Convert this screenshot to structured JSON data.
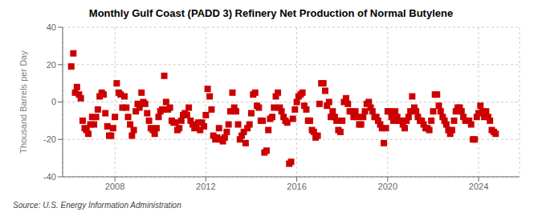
{
  "chart_data": {
    "type": "scatter",
    "title": "Monthly Gulf Coast (PADD 3) Refinery Net Production of Normal Butylene",
    "ylabel": "Thousand Barrels per Day",
    "annotations": [
      "Source: U.S. Energy Information Administration"
    ],
    "color": "#cc0000",
    "marker": "square",
    "grid": true,
    "xlim": [
      2005.7,
      2025.8
    ],
    "xticks": [
      2008,
      2012,
      2016,
      2020,
      2024
    ],
    "ylim": [
      -40,
      40
    ],
    "yticks": [
      -40,
      -20,
      0,
      20,
      40
    ],
    "x": [
      2006.08,
      2006.17,
      2006.25,
      2006.33,
      2006.42,
      2006.5,
      2006.58,
      2006.67,
      2006.75,
      2006.83,
      2006.92,
      2007.0,
      2007.08,
      2007.17,
      2007.25,
      2007.33,
      2007.42,
      2007.5,
      2007.58,
      2007.67,
      2007.75,
      2007.83,
      2007.92,
      2008.0,
      2008.08,
      2008.17,
      2008.25,
      2008.33,
      2008.42,
      2008.5,
      2008.58,
      2008.67,
      2008.75,
      2008.83,
      2008.92,
      2009.0,
      2009.08,
      2009.17,
      2009.25,
      2009.33,
      2009.42,
      2009.5,
      2009.58,
      2009.67,
      2009.75,
      2009.83,
      2009.92,
      2010.0,
      2010.08,
      2010.17,
      2010.25,
      2010.33,
      2010.42,
      2010.5,
      2010.58,
      2010.67,
      2010.75,
      2010.83,
      2010.92,
      2011.0,
      2011.08,
      2011.17,
      2011.25,
      2011.33,
      2011.42,
      2011.5,
      2011.58,
      2011.67,
      2011.75,
      2011.83,
      2011.92,
      2012.0,
      2012.08,
      2012.17,
      2012.25,
      2012.33,
      2012.42,
      2012.5,
      2012.58,
      2012.67,
      2012.75,
      2012.83,
      2012.92,
      2013.0,
      2013.08,
      2013.17,
      2013.25,
      2013.33,
      2013.42,
      2013.5,
      2013.58,
      2013.67,
      2013.75,
      2013.83,
      2013.92,
      2014.0,
      2014.08,
      2014.17,
      2014.25,
      2014.33,
      2014.42,
      2014.5,
      2014.58,
      2014.67,
      2014.75,
      2014.83,
      2014.92,
      2015.0,
      2015.08,
      2015.17,
      2015.25,
      2015.33,
      2015.42,
      2015.5,
      2015.58,
      2015.67,
      2015.75,
      2015.83,
      2015.92,
      2016.0,
      2016.08,
      2016.17,
      2016.25,
      2016.33,
      2016.42,
      2016.5,
      2016.58,
      2016.67,
      2016.75,
      2016.83,
      2016.92,
      2017.0,
      2017.08,
      2017.17,
      2017.25,
      2017.33,
      2017.42,
      2017.5,
      2017.58,
      2017.67,
      2017.75,
      2017.83,
      2017.92,
      2018.0,
      2018.08,
      2018.17,
      2018.25,
      2018.33,
      2018.42,
      2018.5,
      2018.58,
      2018.67,
      2018.75,
      2018.83,
      2018.92,
      2019.0,
      2019.08,
      2019.17,
      2019.25,
      2019.33,
      2019.42,
      2019.5,
      2019.58,
      2019.67,
      2019.75,
      2019.83,
      2019.92,
      2020.0,
      2020.08,
      2020.17,
      2020.25,
      2020.33,
      2020.42,
      2020.5,
      2020.58,
      2020.67,
      2020.75,
      2020.83,
      2020.92,
      2021.0,
      2021.08,
      2021.17,
      2021.25,
      2021.33,
      2021.42,
      2021.5,
      2021.58,
      2021.67,
      2021.75,
      2021.83,
      2021.92,
      2022.0,
      2022.08,
      2022.17,
      2022.25,
      2022.33,
      2022.42,
      2022.5,
      2022.58,
      2022.67,
      2022.75,
      2022.83,
      2022.92,
      2023.0,
      2023.08,
      2023.17,
      2023.25,
      2023.33,
      2023.42,
      2023.58,
      2023.67,
      2023.75,
      2023.83,
      2023.92,
      2024.0,
      2024.08,
      2024.17,
      2024.25,
      2024.33,
      2024.42,
      2024.5,
      2024.58,
      2024.67,
      2024.75
    ],
    "values": [
      19.0,
      26.0,
      5.0,
      8.0,
      4.0,
      2.0,
      -10.0,
      -14.0,
      -15.0,
      -17.0,
      -12.0,
      -8.0,
      -12.0,
      -8.0,
      -4.0,
      3.0,
      5.0,
      4.0,
      -6.0,
      -13.0,
      -18.0,
      -18.0,
      -14.0,
      -8.0,
      10.0,
      5.0,
      4.0,
      -3.0,
      3.0,
      -3.0,
      -8.0,
      -12.0,
      -18.0,
      -15.0,
      -5.0,
      -1.0,
      -3.0,
      5.0,
      0.0,
      -1.0,
      -6.0,
      -10.0,
      -14.0,
      -15.0,
      -17.0,
      -14.0,
      -8.0,
      -5.0,
      -4.0,
      14.0,
      0.0,
      -4.0,
      -3.0,
      -10.0,
      -11.0,
      -11.0,
      -15.0,
      -14.0,
      -10.0,
      -7.0,
      -6.0,
      -7.0,
      -3.0,
      -10.0,
      -12.0,
      -14.0,
      -13.0,
      -11.0,
      -15.0,
      -11.0,
      -13.0,
      -7.0,
      7.0,
      3.0,
      -4.0,
      -18.0,
      -20.0,
      -19.0,
      -14.0,
      -20.0,
      -21.0,
      -19.0,
      -16.0,
      -12.0,
      -5.0,
      5.0,
      -3.0,
      -5.0,
      -12.0,
      -20.0,
      -18.0,
      -16.0,
      -22.0,
      -14.0,
      -12.0,
      -6.0,
      4.0,
      5.0,
      -2.0,
      -3.0,
      -10.0,
      -10.0,
      -27.0,
      -26.0,
      -15.0,
      -9.0,
      -8.0,
      -3.0,
      3.0,
      5.0,
      -3.0,
      -5.0,
      -8.0,
      -10.0,
      -11.0,
      -33.0,
      -32.0,
      -9.0,
      -4.0,
      0.0,
      3.0,
      4.0,
      5.0,
      -2.0,
      -4.0,
      -10.0,
      -10.0,
      -15.0,
      -16.0,
      -19.0,
      -18.0,
      -1.0,
      10.0,
      10.0,
      6.0,
      -2.0,
      0.0,
      -8.0,
      -5.0,
      -8.0,
      -10.0,
      -15.0,
      -16.0,
      -10.0,
      0.0,
      2.0,
      -1.0,
      -5.0,
      -5.0,
      -8.0,
      -5.0,
      -8.0,
      -12.0,
      -12.0,
      -8.0,
      -5.0,
      -1.0,
      0.0,
      -3.0,
      -5.0,
      -8.0,
      -8.0,
      -10.0,
      -12.0,
      -14.0,
      -22.0,
      -14.0,
      -5.0,
      -5.0,
      -8.0,
      -10.0,
      -5.0,
      -8.0,
      -10.0,
      -10.0,
      -12.0,
      -14.0,
      -10.0,
      -8.0,
      -5.0,
      3.0,
      -3.0,
      -5.0,
      -8.0,
      -10.0,
      -10.0,
      -12.0,
      -14.0,
      -14.0,
      -15.0,
      -10.0,
      -5.0,
      4.0,
      4.0,
      -2.0,
      -5.0,
      -8.0,
      -10.0,
      -12.0,
      -15.0,
      -17.0,
      -15.0,
      -10.0,
      -5.0,
      -3.0,
      -3.0,
      -5.0,
      -8.0,
      -10.0,
      -10.0,
      -12.0,
      -20.0,
      -20.0,
      -8.0,
      -6.0,
      -2.0,
      -5.0,
      -8.0,
      -5.0,
      -8.0,
      -10.0,
      -15.0,
      -16.0,
      -17.0
    ]
  }
}
